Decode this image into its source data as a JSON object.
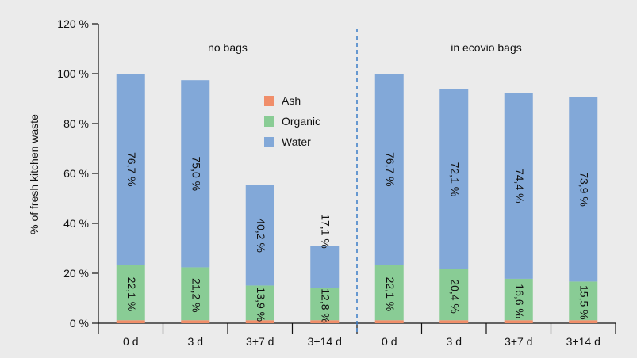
{
  "chart_data": {
    "type": "bar",
    "stacked": true,
    "ylabel": "% of fresh kitchen waste",
    "ylim": [
      0,
      120
    ],
    "yticks": [
      0,
      20,
      40,
      60,
      80,
      100,
      120
    ],
    "ytick_labels": [
      "0 %",
      "20 %",
      "40 %",
      "60 %",
      "80 %",
      "100 %",
      "120 %"
    ],
    "groups": [
      {
        "label": "no bags",
        "categories": [
          "0 d",
          "3 d",
          "3+7 d",
          "3+14 d"
        ]
      },
      {
        "label": "in ecovio bags",
        "categories": [
          "0 d",
          "3 d",
          "3+7 d",
          "3+14 d"
        ]
      }
    ],
    "categories": [
      "0 d",
      "3 d",
      "3+7 d",
      "3+14 d",
      "0 d",
      "3 d",
      "3+7 d",
      "3+14 d"
    ],
    "series": [
      {
        "name": "Ash",
        "color": "#f08e6a",
        "values": [
          1.2,
          1.2,
          1.2,
          1.2,
          1.2,
          1.2,
          1.2,
          1.2
        ]
      },
      {
        "name": "Organic",
        "color": "#89cc95",
        "values": [
          22.1,
          21.2,
          13.9,
          12.8,
          22.1,
          20.4,
          16.6,
          15.5
        ]
      },
      {
        "name": "Water",
        "color": "#82a8d8",
        "values": [
          76.7,
          75.0,
          40.2,
          17.1,
          76.7,
          72.1,
          74.4,
          73.9
        ]
      }
    ],
    "bar_labels": {
      "organic": [
        "22,1 %",
        "21,2 %",
        "13,9 %",
        "12,8 %",
        "22,1 %",
        "20,4 %",
        "16,6 %",
        "15,5 %"
      ],
      "water": [
        "76,7 %",
        "75,0 %",
        "40,2 %",
        "17,1 %",
        "76,7 %",
        "72,1 %",
        "74,4 %",
        "73,9 %"
      ]
    },
    "legend": {
      "position": "inside-top-center",
      "entries": [
        "Ash",
        "Organic",
        "Water"
      ]
    },
    "separator": {
      "style": "dashed",
      "color": "#3a7cc8"
    },
    "grid": false
  }
}
